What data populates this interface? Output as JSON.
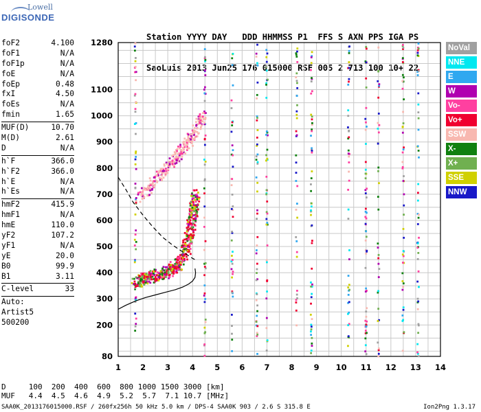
{
  "logo": {
    "line1": "Lowell",
    "line2": "DIGISONDE"
  },
  "header": {
    "row1": "Station YYYY DAY   DDD HHMMSS P1  FFS S AXN PPS IGA PS",
    "row2": "SaoLuis 2013 Jun25 176 015000 RSF 005 2 713 100 10+ 22"
  },
  "params": {
    "group1": [
      {
        "label": "foF2",
        "value": "4.100"
      },
      {
        "label": "foF1",
        "value": "N/A"
      },
      {
        "label": "foF1p",
        "value": "N/A"
      },
      {
        "label": "foE",
        "value": "N/A"
      },
      {
        "label": "foEp",
        "value": "0.48"
      },
      {
        "label": "fxI",
        "value": "4.50"
      },
      {
        "label": "foEs",
        "value": "N/A"
      },
      {
        "label": "fmin",
        "value": "1.65"
      }
    ],
    "group2": [
      {
        "label": "MUF(D)",
        "value": "10.70"
      },
      {
        "label": "M(D)",
        "value": "2.61"
      },
      {
        "label": "D",
        "value": "N/A"
      }
    ],
    "group3": [
      {
        "label": "h`F",
        "value": "366.0"
      },
      {
        "label": "h`F2",
        "value": "366.0"
      },
      {
        "label": "h`E",
        "value": "N/A"
      },
      {
        "label": "h`Es",
        "value": "N/A"
      }
    ],
    "group4": [
      {
        "label": "hmF2",
        "value": "415.9"
      },
      {
        "label": "hmF1",
        "value": "N/A"
      },
      {
        "label": "hmE",
        "value": "110.0"
      },
      {
        "label": "yF2",
        "value": "107.2"
      },
      {
        "label": "yF1",
        "value": "N/A"
      },
      {
        "label": "yE",
        "value": "20.0"
      },
      {
        "label": "B0",
        "value": "99.9"
      },
      {
        "label": "B1",
        "value": "3.11"
      }
    ],
    "clevel": {
      "label": "C-level",
      "value": "33"
    },
    "auto": [
      "Auto:",
      "Artist5",
      "500200"
    ]
  },
  "legend": [
    {
      "label": "NoVal",
      "color": "#a0a0a0"
    },
    {
      "label": "NNE",
      "color": "#00e8f0"
    },
    {
      "label": "E",
      "color": "#30a8f0"
    },
    {
      "label": "W",
      "color": "#b000b0"
    },
    {
      "label": "Vo-",
      "color": "#ff40a0"
    },
    {
      "label": "Vo+",
      "color": "#f00030"
    },
    {
      "label": "SSW",
      "color": "#f8b8b0"
    },
    {
      "label": "X-",
      "color": "#108010"
    },
    {
      "label": "X+",
      "color": "#70b050"
    },
    {
      "label": "SSE",
      "color": "#d0d000"
    },
    {
      "label": "NNW",
      "color": "#1818c8"
    }
  ],
  "footer": {
    "d_row": "D     100  200  400  600  800 1000 1500 3000 [km]",
    "muf_row": "MUF   4.4  4.5  4.6  4.9  5.2  5.7  7.1 10.7 [MHz]",
    "bottom": "SAA0K_2013176015000.RSF / 260fx256h 50 kHz 5.0 km / DPS-4 SAA0K 903 / 2.6 S 315.8 E",
    "version": "Ion2Png 1.3.17"
  },
  "chart_data": {
    "type": "scatter",
    "xlim": [
      1,
      14
    ],
    "ylim": [
      80,
      1280
    ],
    "x_ticks": [
      1,
      2,
      3,
      4,
      5,
      6,
      7,
      8,
      9,
      10,
      11,
      12,
      13,
      14
    ],
    "y_ticks": [
      80,
      200,
      300,
      400,
      500,
      600,
      700,
      800,
      900,
      1000,
      1100,
      1280
    ],
    "x_grid_step": 0.5,
    "y_grid_step": 50,
    "grid": true,
    "o_trace": [
      [
        1.7,
        365
      ],
      [
        1.9,
        370
      ],
      [
        2.1,
        378
      ],
      [
        2.4,
        385
      ],
      [
        2.7,
        393
      ],
      [
        3.0,
        403
      ],
      [
        3.2,
        415
      ],
      [
        3.4,
        430
      ],
      [
        3.6,
        455
      ],
      [
        3.75,
        490
      ],
      [
        3.85,
        530
      ],
      [
        3.95,
        580
      ],
      [
        4.02,
        620
      ],
      [
        4.08,
        660
      ],
      [
        4.12,
        700
      ]
    ],
    "o_trace_upper": [
      [
        1.9,
        690
      ],
      [
        2.2,
        720
      ],
      [
        2.5,
        752
      ],
      [
        2.8,
        785
      ],
      [
        3.1,
        815
      ],
      [
        3.4,
        845
      ],
      [
        3.7,
        880
      ],
      [
        3.9,
        910
      ],
      [
        4.1,
        940
      ],
      [
        4.3,
        975
      ],
      [
        4.45,
        1010
      ]
    ],
    "profile_curve": [
      [
        1.0,
        260
      ],
      [
        1.3,
        275
      ],
      [
        1.7,
        292
      ],
      [
        2.1,
        305
      ],
      [
        2.5,
        315
      ],
      [
        2.9,
        325
      ],
      [
        3.3,
        335
      ],
      [
        3.6,
        345
      ],
      [
        3.85,
        357
      ],
      [
        4.0,
        368
      ],
      [
        4.1,
        382
      ],
      [
        4.12,
        400
      ],
      [
        4.1,
        416
      ]
    ],
    "dashed_curve": [
      [
        1.0,
        765
      ],
      [
        1.3,
        720
      ],
      [
        1.6,
        670
      ],
      [
        2.0,
        620
      ],
      [
        2.4,
        575
      ],
      [
        2.8,
        535
      ],
      [
        3.2,
        505
      ],
      [
        3.6,
        480
      ],
      [
        4.0,
        455
      ],
      [
        4.1,
        450
      ]
    ],
    "vertical_streaks": [
      1.7,
      4.5,
      5.6,
      6.6,
      7.0,
      8.2,
      8.8,
      10.3,
      11.0,
      11.5,
      12.5,
      13.1
    ]
  }
}
